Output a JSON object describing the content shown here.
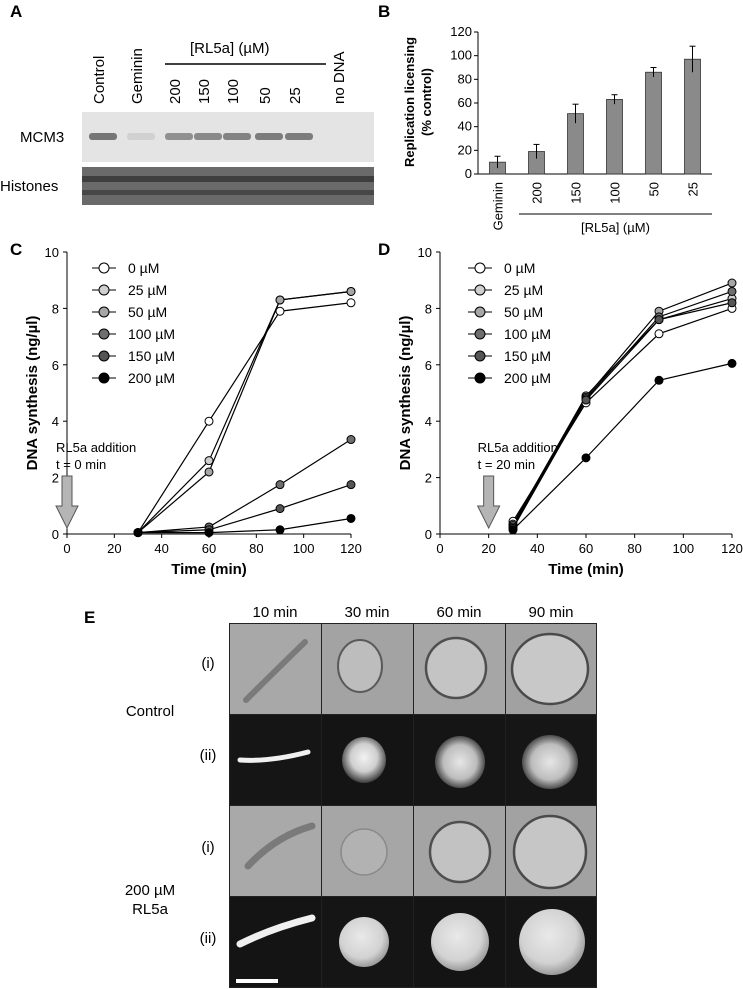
{
  "panel_letters": {
    "a": "A",
    "b": "B",
    "c": "C",
    "d": "D",
    "e": "E"
  },
  "panel_a": {
    "lane_labels": [
      "Control",
      "Geminin",
      "200",
      "150",
      "100",
      "50",
      "25",
      "no DNA"
    ],
    "group_label": "[RL5a] (µM)",
    "row_labels": {
      "mcm3": "MCM3",
      "histones": "Histones"
    },
    "mcm3_band_intensity": [
      0.75,
      0.05,
      0.55,
      0.6,
      0.65,
      0.7,
      0.7,
      0.0
    ]
  },
  "charts": [
    {
      "type": "bar",
      "categories": [
        "Geminin",
        "200",
        "150",
        "100",
        "50",
        "25"
      ],
      "values": [
        10,
        19,
        51,
        63,
        86,
        97
      ],
      "errors": [
        5,
        6,
        8,
        4,
        4,
        11
      ],
      "ylabel": "Replication licensing (% control)",
      "ylabel_lines": [
        "Replication licensing",
        "(% control)"
      ],
      "ylim": [
        0,
        120
      ],
      "yticks": [
        "0",
        "20",
        "40",
        "60",
        "80",
        "100",
        "120"
      ],
      "group_label": "[RL5a] (µM)",
      "bar_color": "#8a8a8a"
    },
    {
      "type": "line",
      "x": [
        30,
        60,
        90,
        120
      ],
      "series": [
        {
          "name": "0 µM",
          "values": [
            0.05,
            4.0,
            7.9,
            8.2
          ],
          "fill": "#ffffff"
        },
        {
          "name": "25 µM",
          "values": [
            0.05,
            2.6,
            8.3,
            8.6
          ],
          "fill": "#cfcfcf"
        },
        {
          "name": "50 µM",
          "values": [
            0.05,
            2.2,
            8.3,
            8.6
          ],
          "fill": "#a6a6a6"
        },
        {
          "name": "100 µM",
          "values": [
            0.05,
            0.25,
            1.75,
            3.35
          ],
          "fill": "#6e6e6e"
        },
        {
          "name": "150 µM",
          "values": [
            0.05,
            0.15,
            0.9,
            1.75
          ],
          "fill": "#555555"
        },
        {
          "name": "200 µM",
          "values": [
            0.05,
            0.05,
            0.15,
            0.55
          ],
          "fill": "#000000"
        }
      ],
      "xlabel": "Time (min)",
      "ylabel": "DNA synthesis (ng/µl)",
      "xlim": [
        0,
        120
      ],
      "ylim": [
        0,
        10
      ],
      "xticks": [
        "0",
        "20",
        "40",
        "60",
        "80",
        "100",
        "120"
      ],
      "yticks": [
        "0",
        "2",
        "4",
        "6",
        "8",
        "10"
      ],
      "annotation_lines": [
        "RL5a addition",
        "t = 0 min"
      ],
      "arrow_x": 0
    },
    {
      "type": "line",
      "x": [
        30,
        60,
        90,
        120
      ],
      "series": [
        {
          "name": "0 µM",
          "values": [
            0.45,
            4.65,
            7.1,
            8.0
          ],
          "fill": "#ffffff"
        },
        {
          "name": "25 µM",
          "values": [
            0.35,
            4.9,
            7.6,
            8.35
          ],
          "fill": "#cfcfcf"
        },
        {
          "name": "50 µM",
          "values": [
            0.3,
            4.85,
            7.9,
            8.9
          ],
          "fill": "#a6a6a6"
        },
        {
          "name": "100 µM",
          "values": [
            0.25,
            4.8,
            7.7,
            8.6
          ],
          "fill": "#6e6e6e"
        },
        {
          "name": "150 µM",
          "values": [
            0.2,
            4.75,
            7.6,
            8.2
          ],
          "fill": "#555555"
        },
        {
          "name": "200 µM",
          "values": [
            0.15,
            2.7,
            5.45,
            6.05
          ],
          "fill": "#000000"
        }
      ],
      "xlabel": "Time (min)",
      "ylabel": "DNA synthesis (ng/µl)",
      "xlim": [
        0,
        120
      ],
      "ylim": [
        0,
        10
      ],
      "xticks": [
        "0",
        "20",
        "40",
        "60",
        "80",
        "100",
        "120"
      ],
      "yticks": [
        "0",
        "2",
        "4",
        "6",
        "8",
        "10"
      ],
      "annotation_lines": [
        "RL5a addition",
        "t = 20 min"
      ],
      "arrow_x": 20
    }
  ],
  "panel_e": {
    "time_labels": [
      "10 min",
      "30 min",
      "60 min",
      "90 min"
    ],
    "row_labels": [
      "(i)",
      "(ii)",
      "(i)",
      "(ii)"
    ],
    "group_labels": [
      [
        "Control"
      ],
      [
        "200 µM",
        "RL5a"
      ]
    ]
  }
}
